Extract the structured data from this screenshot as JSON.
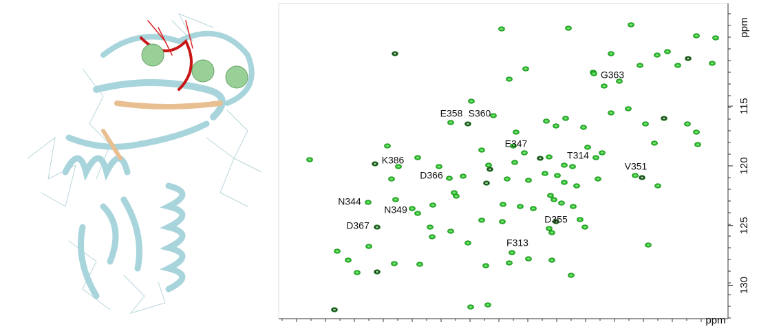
{
  "spectrum": {
    "y_axis": {
      "unit": "ppm",
      "ticks": [
        115,
        120,
        125,
        130
      ],
      "ylim": [
        106.4,
        132.8
      ]
    },
    "x_axis": {
      "unit": "ppm"
    },
    "peak_labels": [
      "E358",
      "S360",
      "G363",
      "E347",
      "T314",
      "K386",
      "V351",
      "D366",
      "N344",
      "N349",
      "D367",
      "D355",
      "F313"
    ]
  }
}
